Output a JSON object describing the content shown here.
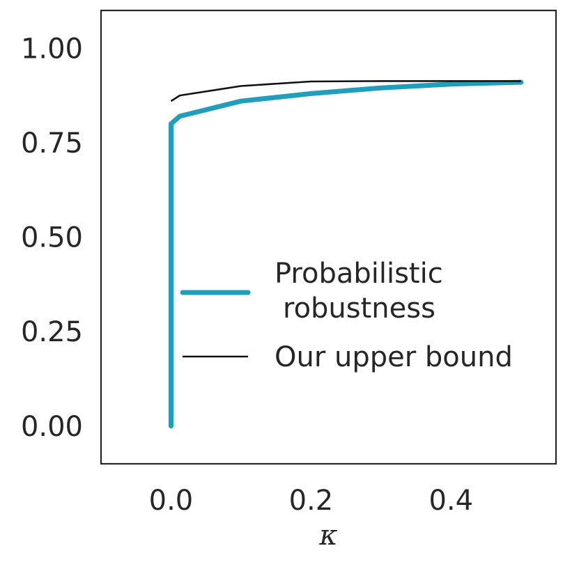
{
  "chart_data": {
    "type": "line",
    "title": "",
    "xlabel": "κ",
    "ylabel": "",
    "xlim": [
      -0.1,
      0.55
    ],
    "ylim": [
      -0.1,
      1.1
    ],
    "xticks": [
      0.0,
      0.2,
      0.4
    ],
    "xtick_labels": [
      "0.0",
      "0.2",
      "0.4"
    ],
    "yticks": [
      0.0,
      0.25,
      0.5,
      0.75,
      1.0
    ],
    "ytick_labels": [
      "0.00",
      "0.25",
      "0.50",
      "0.75",
      "1.00"
    ],
    "grid": false,
    "legend_position": "center-right",
    "series": [
      {
        "name": "Probabilistic robustness",
        "legend_lines": [
          "Probabilistic",
          "robustness"
        ],
        "color": "#219ebc",
        "style": "thick",
        "x": [
          0.0,
          0.0,
          0.0125,
          0.1,
          0.2,
          0.3,
          0.4,
          0.5
        ],
        "y": [
          0.0,
          0.8,
          0.82,
          0.86,
          0.88,
          0.895,
          0.905,
          0.91
        ]
      },
      {
        "name": "Our upper bound",
        "legend_lines": [
          "Our upper bound"
        ],
        "color": "#111111",
        "style": "thin",
        "x": [
          0.0,
          0.0125,
          0.1,
          0.2,
          0.3,
          0.4,
          0.5
        ],
        "y": [
          0.86,
          0.875,
          0.9,
          0.912,
          0.913,
          0.913,
          0.913
        ]
      }
    ]
  }
}
